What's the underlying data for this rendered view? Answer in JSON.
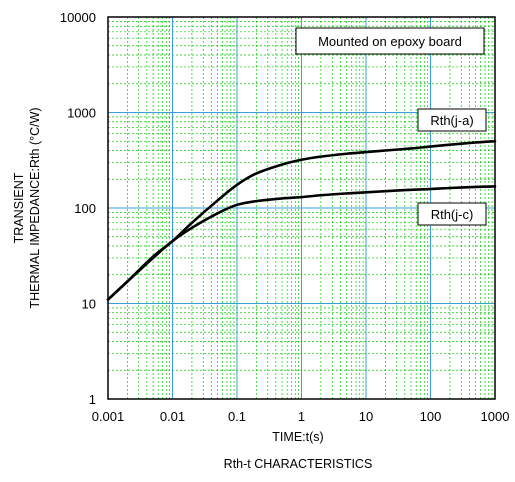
{
  "chart_data": {
    "type": "line",
    "title": "",
    "caption": "Rth-t CHARACTERISTICS",
    "xlabel": "TIME:t(s)",
    "ylabel_lines": [
      "TRANSIENT",
      "THERMAL IMPEDANCE:Rth  (°C/W)"
    ],
    "xscale": "log",
    "yscale": "log",
    "xlim": [
      0.001,
      1000
    ],
    "ylim": [
      1,
      10000
    ],
    "x_ticks": [
      "0.001",
      "0.01",
      "0.1",
      "1",
      "10",
      "100",
      "1000"
    ],
    "y_ticks": [
      "1",
      "10",
      "100",
      "1000",
      "10000"
    ],
    "grid": true,
    "annotation_box": "Mounted on epoxy board",
    "series": [
      {
        "name": "Rth(j-a)",
        "x": [
          0.001,
          0.002,
          0.005,
          0.01,
          0.02,
          0.05,
          0.1,
          0.2,
          0.5,
          1,
          2,
          5,
          10,
          20,
          50,
          100,
          200,
          500,
          1000
        ],
        "y": [
          11,
          17,
          31,
          45,
          70,
          120,
          175,
          230,
          285,
          320,
          345,
          370,
          385,
          400,
          420,
          440,
          460,
          485,
          500
        ]
      },
      {
        "name": "Rth(j-c)",
        "x": [
          0.001,
          0.002,
          0.005,
          0.01,
          0.02,
          0.05,
          0.1,
          0.2,
          0.5,
          1,
          2,
          5,
          10,
          20,
          50,
          100,
          200,
          500,
          1000
        ],
        "y": [
          11,
          17,
          30,
          45,
          62,
          88,
          108,
          118,
          126,
          130,
          136,
          142,
          146,
          150,
          155,
          158,
          162,
          166,
          168
        ]
      }
    ]
  },
  "colors": {
    "grid_major": "#3aa0d8",
    "grid_minor": "#00cc00",
    "line": "#000000"
  }
}
